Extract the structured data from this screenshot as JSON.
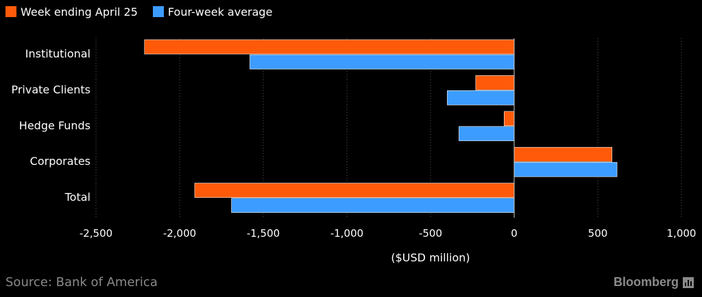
{
  "chart_data": {
    "type": "bar",
    "orientation": "horizontal",
    "categories": [
      "Institutional",
      "Private Clients",
      "Hedge Funds",
      "Corporates",
      "Total"
    ],
    "series": [
      {
        "name": "Week ending April 25",
        "color": "#ff5a0a",
        "values": [
          -2210,
          -230,
          -60,
          585,
          -1910
        ]
      },
      {
        "name": "Four-week average",
        "color": "#3d9cff",
        "values": [
          -1580,
          -400,
          -330,
          615,
          -1690
        ]
      }
    ],
    "xlim": [
      -2500,
      1000
    ],
    "xticks": [
      -2500,
      -2000,
      -1500,
      -1000,
      -500,
      0,
      500,
      1000
    ],
    "xtick_labels": [
      "-2,500",
      "-2,000",
      "-1,500",
      "-1,000",
      "-500",
      "0",
      "500",
      "1,000"
    ],
    "xlabel": "($USD million)",
    "grid": true,
    "legend_position": "top-left"
  },
  "footer": {
    "source": "Source: Bank of America",
    "brand": "Bloomberg"
  }
}
